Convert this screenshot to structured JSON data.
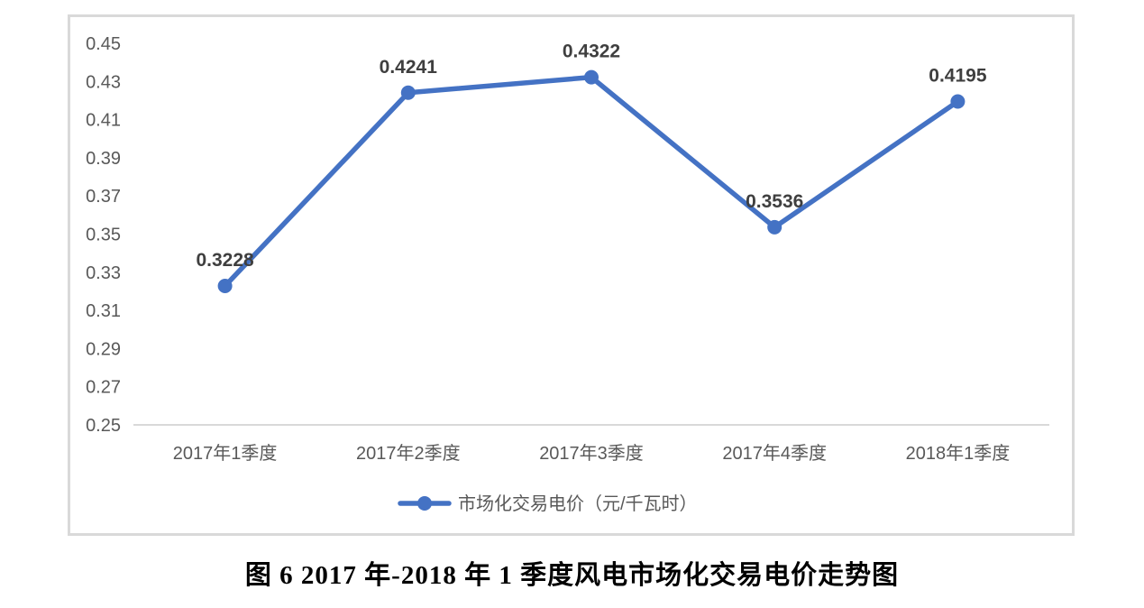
{
  "caption": "图 6 2017 年-2018 年 1 季度风电市场化交易电价走势图",
  "chart_data": {
    "type": "line",
    "title": "",
    "categories": [
      "2017年1季度",
      "2017年2季度",
      "2017年3季度",
      "2017年4季度",
      "2018年1季度"
    ],
    "series": [
      {
        "name": "市场化交易电价（元/千瓦时）",
        "values": [
          0.3228,
          0.4241,
          0.4322,
          0.3536,
          0.4195
        ]
      }
    ],
    "data_labels": [
      "0.3228",
      "0.4241",
      "0.4322",
      "0.3536",
      "0.4195"
    ],
    "xlabel": "",
    "ylabel": "",
    "ylim": [
      0.25,
      0.45
    ],
    "yticks": [
      "0.45",
      "0.43",
      "0.41",
      "0.39",
      "0.37",
      "0.35",
      "0.33",
      "0.31",
      "0.29",
      "0.27",
      "0.25"
    ],
    "grid": false,
    "legend_position": "bottom",
    "legend_label": "市场化交易电价（元/千瓦时）",
    "colors": {
      "line": "#4472c4",
      "marker": "#4472c4",
      "axis": "#d9d9d9",
      "tick_label": "#595959",
      "data_label": "#3f3f3f",
      "frame_border": "#d9d9d9"
    }
  }
}
